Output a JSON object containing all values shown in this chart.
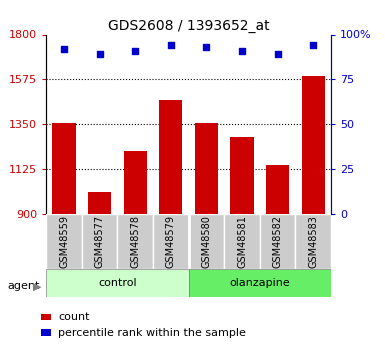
{
  "title": "GDS2608 / 1393652_at",
  "categories": [
    "GSM48559",
    "GSM48577",
    "GSM48578",
    "GSM48579",
    "GSM48580",
    "GSM48581",
    "GSM48582",
    "GSM48583"
  ],
  "bar_values": [
    1355,
    1010,
    1215,
    1470,
    1355,
    1285,
    1145,
    1590
  ],
  "dot_values": [
    92,
    89,
    91,
    94,
    93,
    91,
    89,
    94
  ],
  "ylim_left": [
    900,
    1800
  ],
  "ylim_right": [
    0,
    100
  ],
  "yticks_left": [
    900,
    1125,
    1350,
    1575,
    1800
  ],
  "yticks_right": [
    0,
    25,
    50,
    75,
    100
  ],
  "bar_color": "#cc0000",
  "dot_color": "#0000cc",
  "control_label": "control",
  "olanzapine_label": "olanzapine",
  "agent_label": "agent",
  "control_color": "#ccffcc",
  "olanzapine_color": "#66ee66",
  "sample_box_color": "#cccccc",
  "legend_count": "count",
  "legend_percentile": "percentile rank within the sample",
  "grid_color": "#000000",
  "title_fontsize": 10,
  "axis_fontsize": 8,
  "label_fontsize": 8,
  "tick_fontsize": 7
}
